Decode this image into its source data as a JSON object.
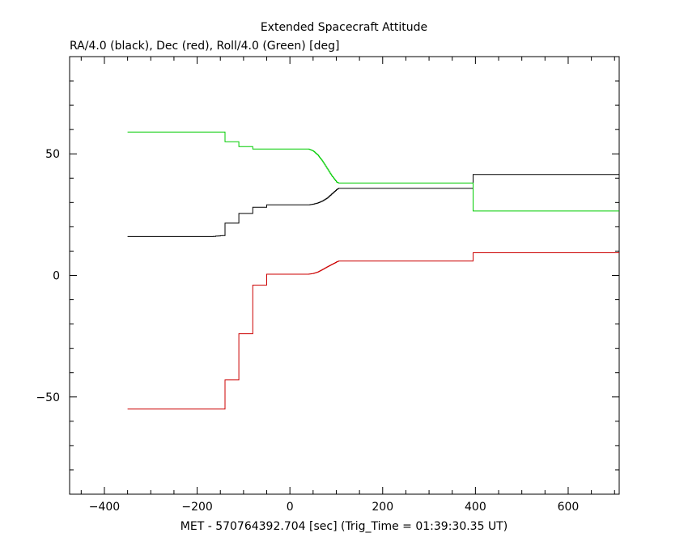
{
  "chart_data": {
    "type": "line",
    "title": "Extended Spacecraft Attitude",
    "subtitle": "RA/4.0 (black), Dec (red), Roll/4.0 (Green) [deg]",
    "xlabel": "MET - 570764392.704 [sec] (Trig_Time = 01:39:30.35 UT)",
    "ylabel": "",
    "xlim": [
      -475,
      710
    ],
    "ylim": [
      -90,
      90
    ],
    "x_ticks": [
      -400,
      -200,
      0,
      200,
      400,
      600
    ],
    "x_tick_labels": [
      "−400",
      "−200",
      "0",
      "200",
      "400",
      "600"
    ],
    "y_ticks": [
      -50,
      0,
      50
    ],
    "y_tick_labels": [
      "−50",
      "0",
      "50"
    ],
    "grid": false,
    "series": [
      {
        "color": "#000000",
        "step": true,
        "points": [
          [
            -350,
            16
          ],
          [
            -170,
            16
          ],
          [
            -140,
            16.5
          ],
          [
            -140,
            21.5
          ],
          [
            -110,
            21.5
          ],
          [
            -110,
            25.5
          ],
          [
            -80,
            25.5
          ],
          [
            -80,
            28
          ],
          [
            -50,
            28
          ],
          [
            -50,
            29
          ],
          [
            40,
            29
          ],
          [
            50,
            29.3
          ],
          [
            60,
            29.8
          ],
          [
            70,
            30.6
          ],
          [
            80,
            31.8
          ],
          [
            90,
            33.5
          ],
          [
            100,
            35.2
          ],
          [
            105,
            35.8
          ],
          [
            395,
            35.8
          ],
          [
            395,
            41.5
          ],
          [
            710,
            41.5
          ]
        ]
      },
      {
        "color": "#cc0000",
        "step": true,
        "points": [
          [
            -350,
            -55
          ],
          [
            -140,
            -55
          ],
          [
            -140,
            -43
          ],
          [
            -110,
            -43
          ],
          [
            -110,
            -24
          ],
          [
            -80,
            -24
          ],
          [
            -80,
            -4
          ],
          [
            -50,
            -4
          ],
          [
            -50,
            0.5
          ],
          [
            40,
            0.5
          ],
          [
            50,
            0.8
          ],
          [
            60,
            1.4
          ],
          [
            70,
            2.4
          ],
          [
            80,
            3.5
          ],
          [
            90,
            4.5
          ],
          [
            100,
            5.5
          ],
          [
            105,
            5.9
          ],
          [
            395,
            5.9
          ],
          [
            395,
            9.3
          ],
          [
            710,
            9.3
          ]
        ]
      },
      {
        "color": "#00cc00",
        "step": true,
        "points": [
          [
            -350,
            59
          ],
          [
            -140,
            59
          ],
          [
            -140,
            55
          ],
          [
            -110,
            55
          ],
          [
            -110,
            53
          ],
          [
            -80,
            53
          ],
          [
            -80,
            52
          ],
          [
            40,
            52
          ],
          [
            50,
            51.2
          ],
          [
            60,
            49.5
          ],
          [
            70,
            47
          ],
          [
            80,
            44
          ],
          [
            90,
            41
          ],
          [
            100,
            38.5
          ],
          [
            105,
            38
          ],
          [
            395,
            38
          ],
          [
            395,
            26.5
          ],
          [
            710,
            26.5
          ]
        ]
      }
    ]
  }
}
